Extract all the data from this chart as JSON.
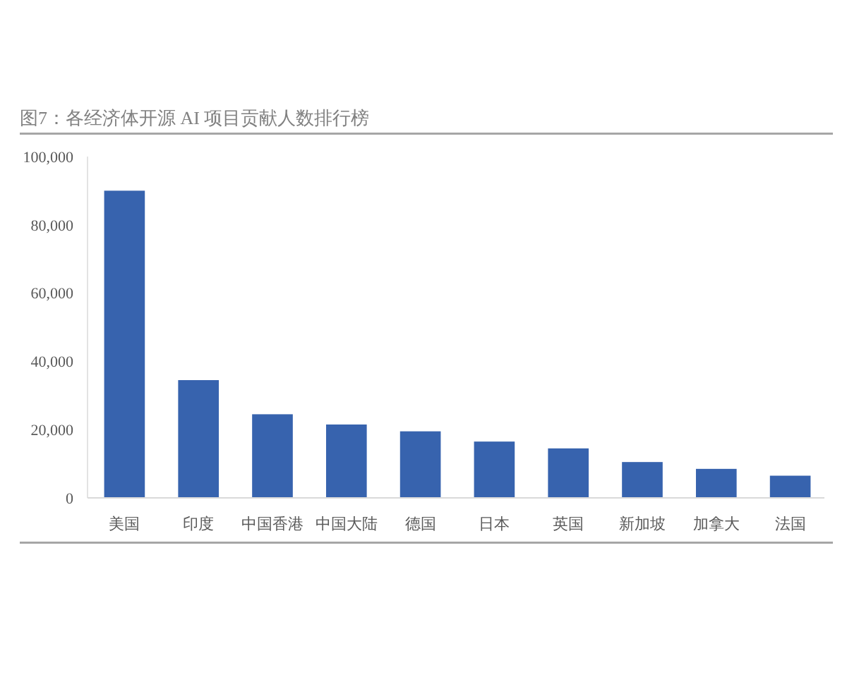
{
  "chart_data": {
    "type": "bar",
    "title": "图7：各经济体开源 AI 项目贡献人数排行榜",
    "categories": [
      "美国",
      "印度",
      "中国香港",
      "中国大陆",
      "德国",
      "日本",
      "英国",
      "新加坡",
      "加拿大",
      "法国"
    ],
    "values": [
      90000,
      34500,
      24500,
      21500,
      19500,
      16500,
      14500,
      10500,
      8500,
      6500
    ],
    "color": "#3763ae",
    "ylim": [
      0,
      100000
    ],
    "yticks": [
      {
        "value": 0,
        "label": "0"
      },
      {
        "value": 20000,
        "label": "20,000"
      },
      {
        "value": 40000,
        "label": "40,000"
      },
      {
        "value": 60000,
        "label": "60,000"
      },
      {
        "value": 80000,
        "label": "80,000"
      },
      {
        "value": 100000,
        "label": "100,000"
      }
    ]
  }
}
